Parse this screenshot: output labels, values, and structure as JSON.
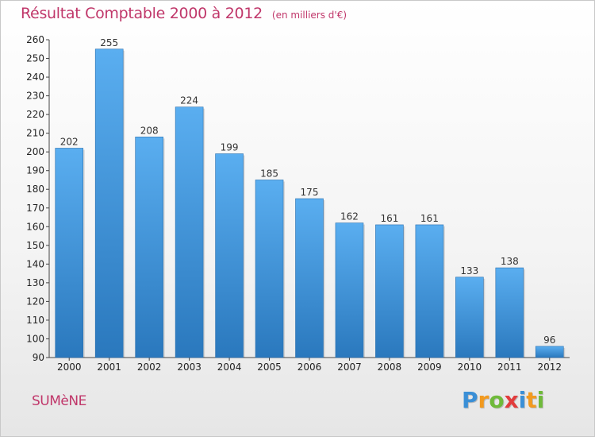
{
  "header": {
    "title": "Résultat Comptable 2000 à 2012",
    "subtitle": "(en milliers d'€)"
  },
  "footer": {
    "commune": "SUMèNE",
    "logo_letters": [
      "P",
      "r",
      "o",
      "x",
      "i",
      "t",
      "i"
    ]
  },
  "colors": {
    "bar_top": "#5aaef0",
    "bar_bottom": "#2a78bd",
    "title": "#c0376a"
  },
  "chart_data": {
    "type": "bar",
    "title": "Résultat Comptable 2000 à 2012",
    "subtitle": "(en milliers d'€)",
    "xlabel": "",
    "ylabel": "",
    "categories": [
      "2000",
      "2001",
      "2002",
      "2003",
      "2004",
      "2005",
      "2006",
      "2007",
      "2008",
      "2009",
      "2010",
      "2011",
      "2012"
    ],
    "values": [
      202,
      255,
      208,
      224,
      199,
      185,
      175,
      162,
      161,
      161,
      133,
      138,
      96
    ],
    "ylim": [
      90,
      260
    ],
    "yticks": [
      90,
      100,
      110,
      120,
      130,
      140,
      150,
      160,
      170,
      180,
      190,
      200,
      210,
      220,
      230,
      240,
      250,
      260
    ],
    "grid": false,
    "legend": "none"
  }
}
